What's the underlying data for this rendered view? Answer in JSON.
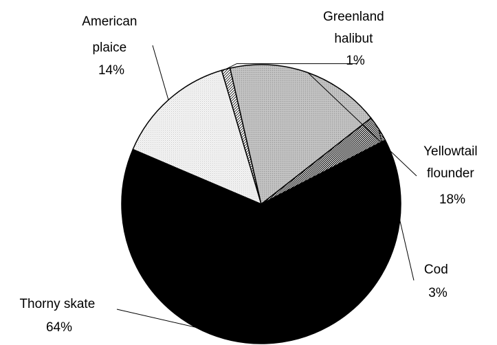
{
  "chart_data": {
    "type": "pie",
    "title": "",
    "start_angle_deg": -16.5,
    "slices": [
      {
        "label_lines": [
          "Greenland",
          "halibut"
        ],
        "percent_text": "1%",
        "value": 1,
        "pattern": "diagonal-lines"
      },
      {
        "label_lines": [
          "Yellowtail",
          "flounder"
        ],
        "percent_text": "18%",
        "value": 18,
        "pattern": "gray-dots"
      },
      {
        "label_lines": [
          "Cod"
        ],
        "percent_text": "3%",
        "value": 3,
        "pattern": "crosshatch"
      },
      {
        "label_lines": [
          "Thorny skate"
        ],
        "percent_text": "64%",
        "value": 64,
        "pattern": "solid-black"
      },
      {
        "label_lines": [
          "American",
          "plaice"
        ],
        "percent_text": "14%",
        "value": 14,
        "pattern": "light-dots"
      }
    ],
    "legend": "none",
    "colors": {
      "outline": "#000000",
      "solid": "#000000",
      "gray": "#bdbdbd",
      "light": "#f2f2f2"
    }
  }
}
